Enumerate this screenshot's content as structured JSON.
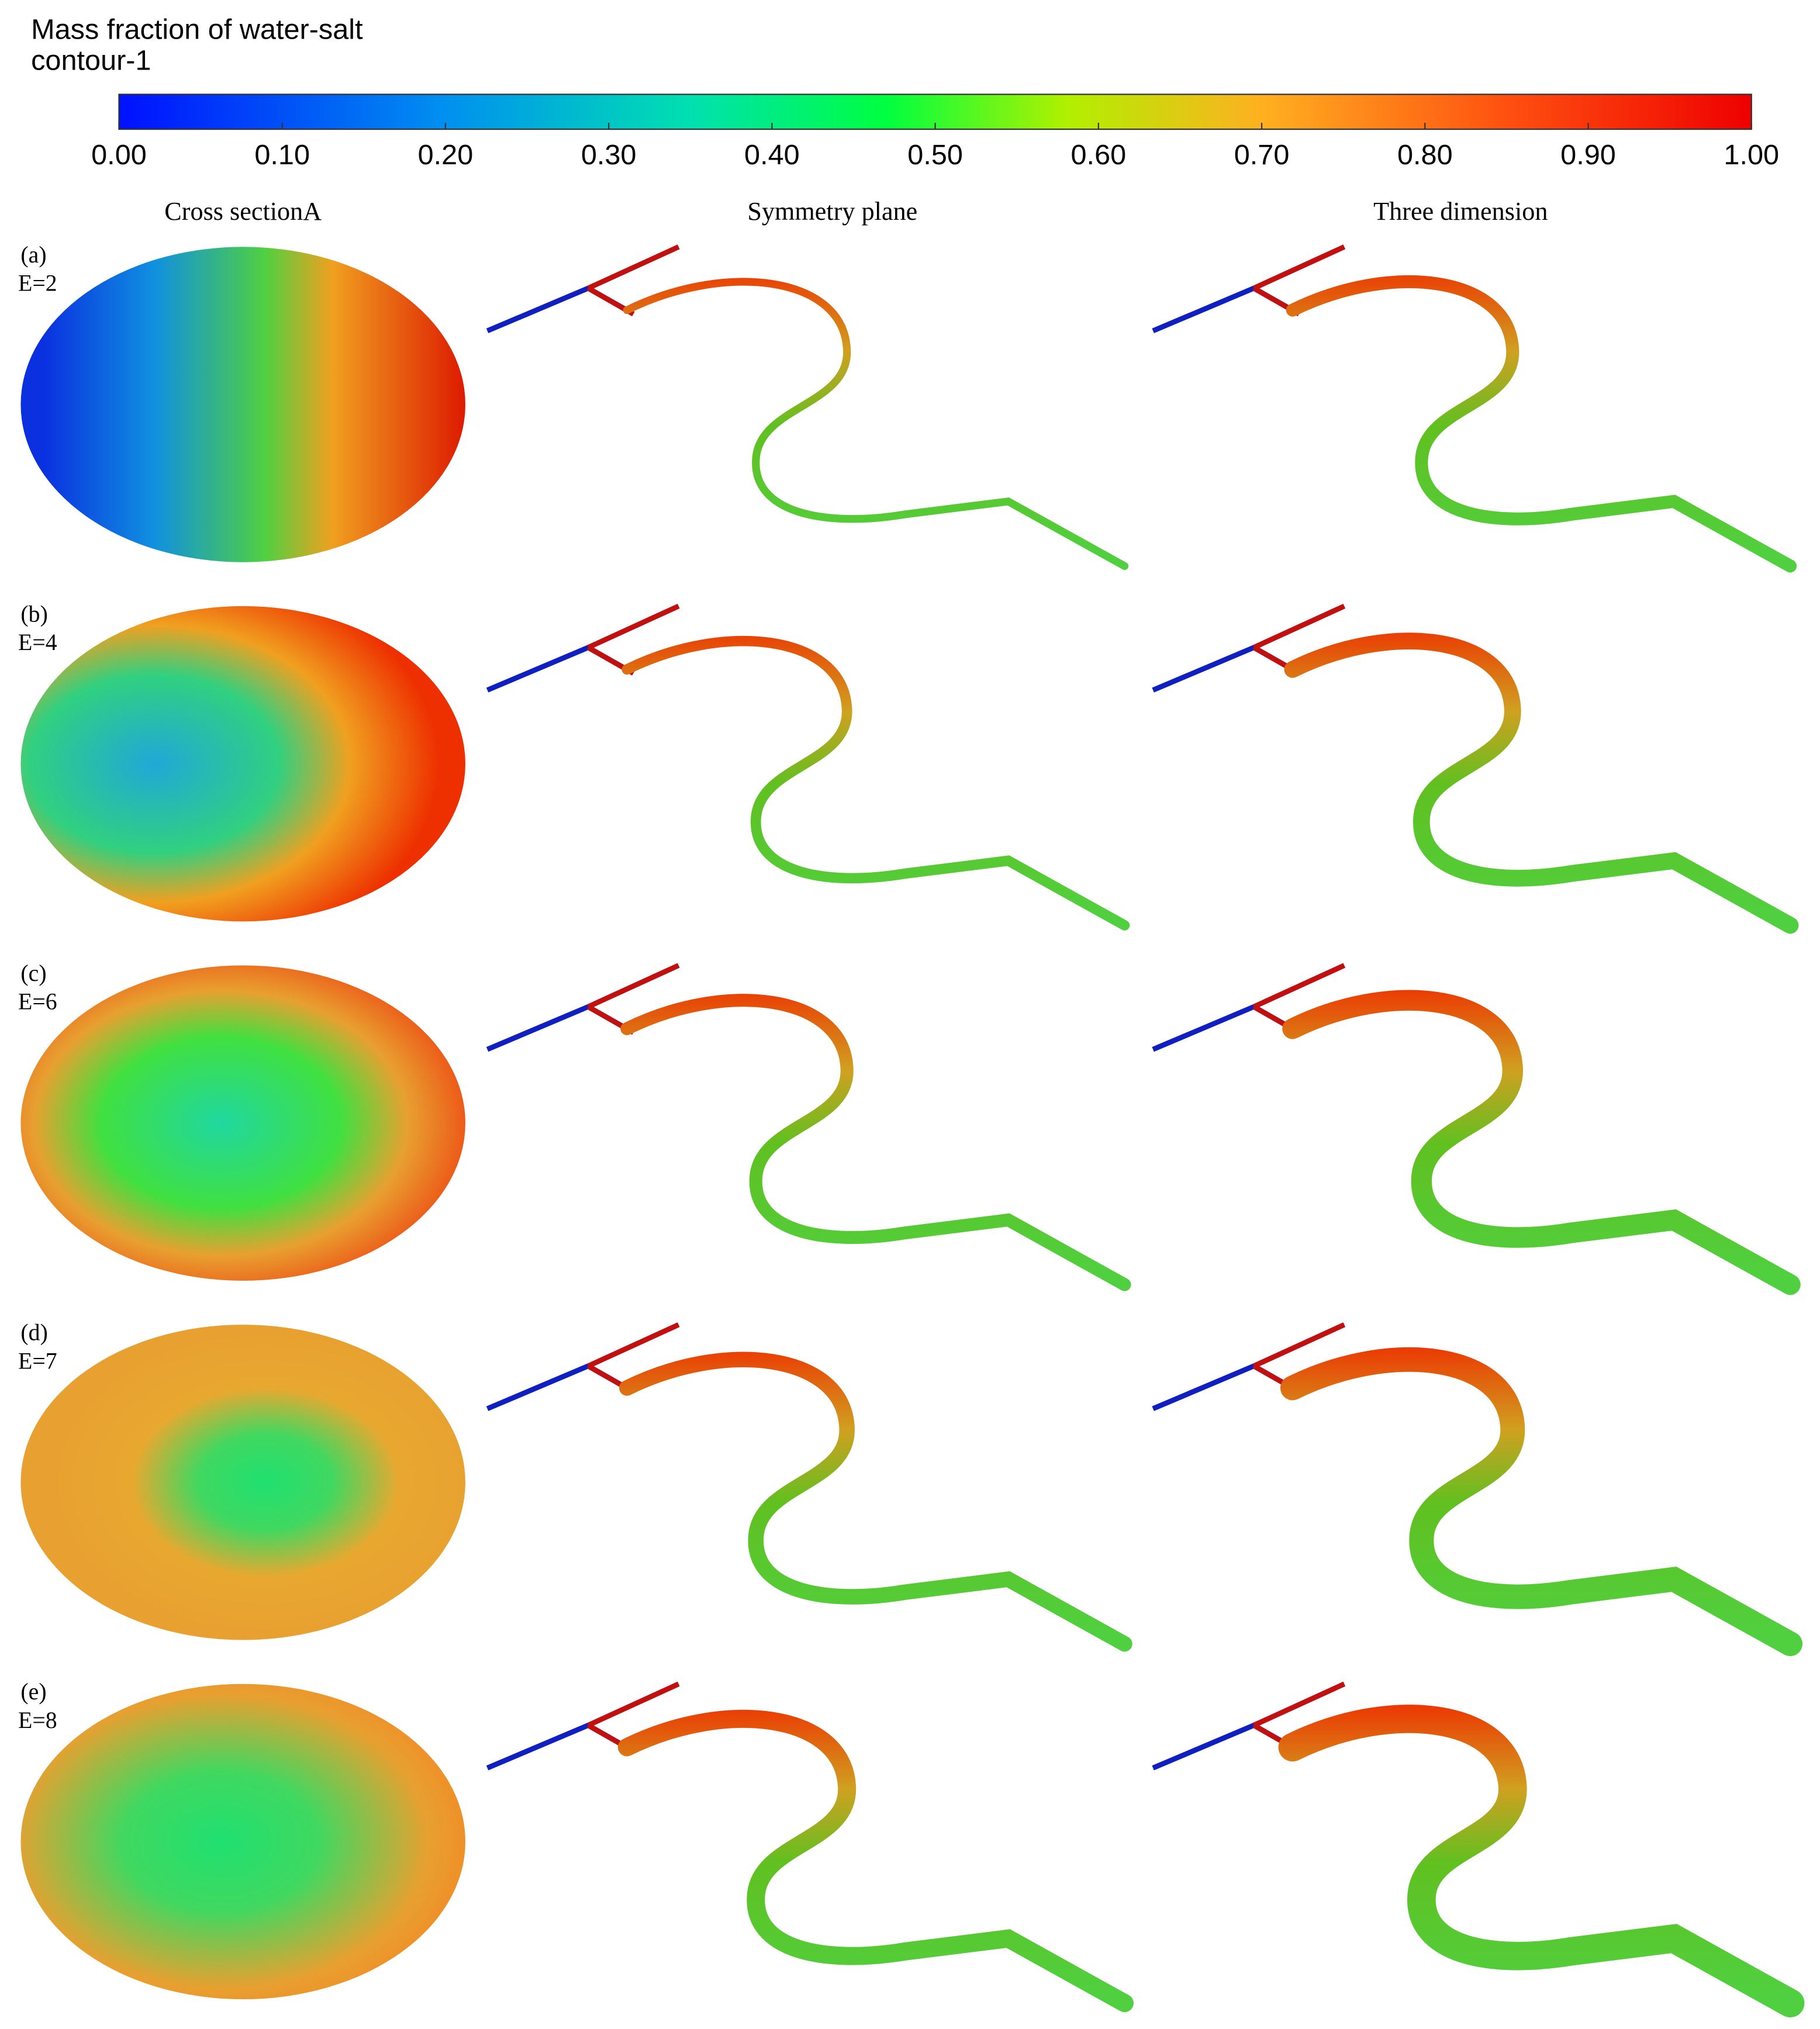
{
  "colorbar": {
    "title": "Mass fraction of water-salt",
    "subtitle": "contour-1",
    "ticks": [
      {
        "value": 0,
        "label": "0.00"
      },
      {
        "value": 0.1,
        "label": "0.10"
      },
      {
        "value": 0.2,
        "label": "0.20"
      },
      {
        "value": 0.3,
        "label": "0.30"
      },
      {
        "value": 0.4,
        "label": "0.40"
      },
      {
        "value": 0.5,
        "label": "0.50"
      },
      {
        "value": 0.6,
        "label": "0.60"
      },
      {
        "value": 0.7,
        "label": "0.70"
      },
      {
        "value": 0.8,
        "label": "0.80"
      },
      {
        "value": 0.9,
        "label": "0.90"
      },
      {
        "value": 1,
        "label": "1.00"
      }
    ]
  },
  "columns": [
    "Cross sectionA",
    "Symmetry plane",
    "Three dimension"
  ],
  "rows": [
    {
      "label": "(a)",
      "case": "E=2"
    },
    {
      "label": "(b)",
      "case": "E=4"
    },
    {
      "label": "(c)",
      "case": "E=6"
    },
    {
      "label": "(d)",
      "case": "E=7"
    },
    {
      "label": "(e)",
      "case": "E=8"
    }
  ]
}
